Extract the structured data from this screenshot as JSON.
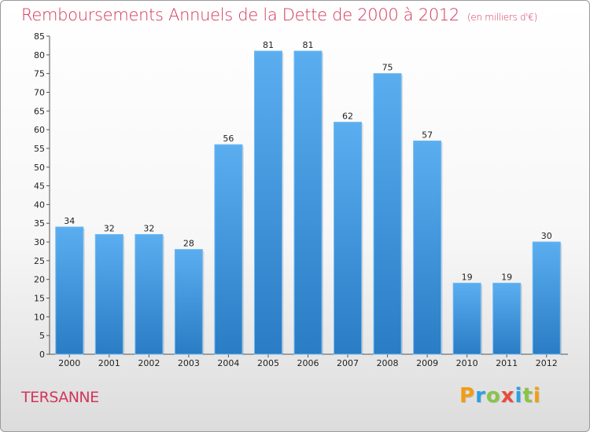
{
  "chart_data": {
    "type": "bar",
    "title": "Remboursements Annuels de la Dette de 2000 à 2012",
    "unit": "(en milliers d'€)",
    "categories": [
      "2000",
      "2001",
      "2002",
      "2003",
      "2004",
      "2005",
      "2006",
      "2007",
      "2008",
      "2009",
      "2010",
      "2011",
      "2012"
    ],
    "values": [
      34,
      32,
      32,
      28,
      56,
      81,
      81,
      62,
      75,
      57,
      19,
      19,
      30
    ],
    "ylim": [
      0,
      85
    ],
    "yticks": [
      0,
      5,
      10,
      15,
      20,
      25,
      30,
      35,
      40,
      45,
      50,
      55,
      60,
      65,
      70,
      75,
      80,
      85
    ],
    "grid": false,
    "bar_color": "#4a9fe0"
  },
  "place": "TERSANNE",
  "logo": {
    "text": "Proxiti",
    "colors": [
      "#f39c12",
      "#2b9fe3",
      "#8bc34a",
      "#e74c3c",
      "#2b9fe3",
      "#8bc34a",
      "#f39c12"
    ]
  }
}
